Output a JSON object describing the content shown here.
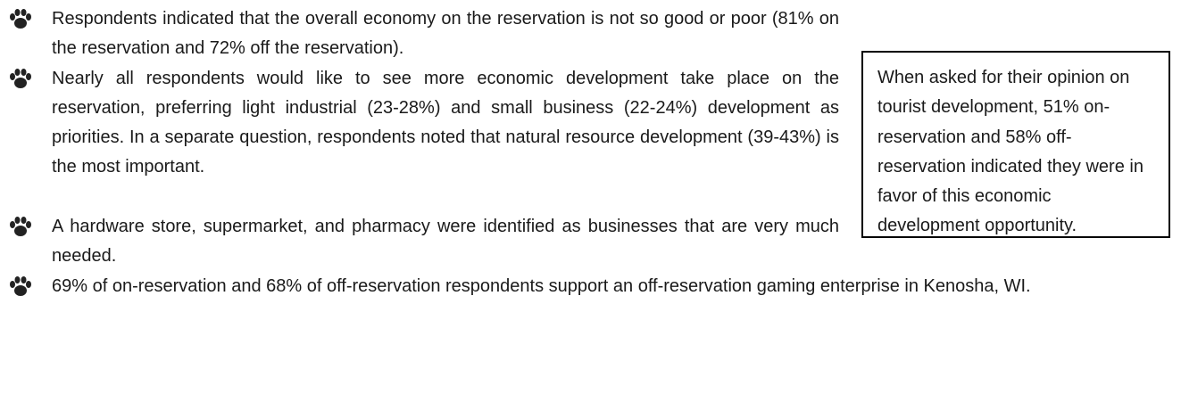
{
  "bullets": [
    "Respondents indicated that the overall economy on the reservation is not so good or poor (81% on the reservation and 72% off the reservation).",
    "Nearly all respondents would like to see more economic development take place on the reservation, preferring light industrial (23-28%) and small business (22-24%) development as priorities. In a separate question, respondents noted that natural resource development (39-43%) is the most important.",
    "A hardware store, supermarket, and pharmacy were identified as businesses that are very much needed.",
    "69% of on-reservation and 68% of off-reservation respondents support an off-reservation gaming enterprise in Kenosha, WI."
  ],
  "sidebox": {
    "text": "When asked for their opinion on tourist development, 51% on-reservation and 58% off-reservation indicated they were in favor of this economic development opportunity."
  }
}
